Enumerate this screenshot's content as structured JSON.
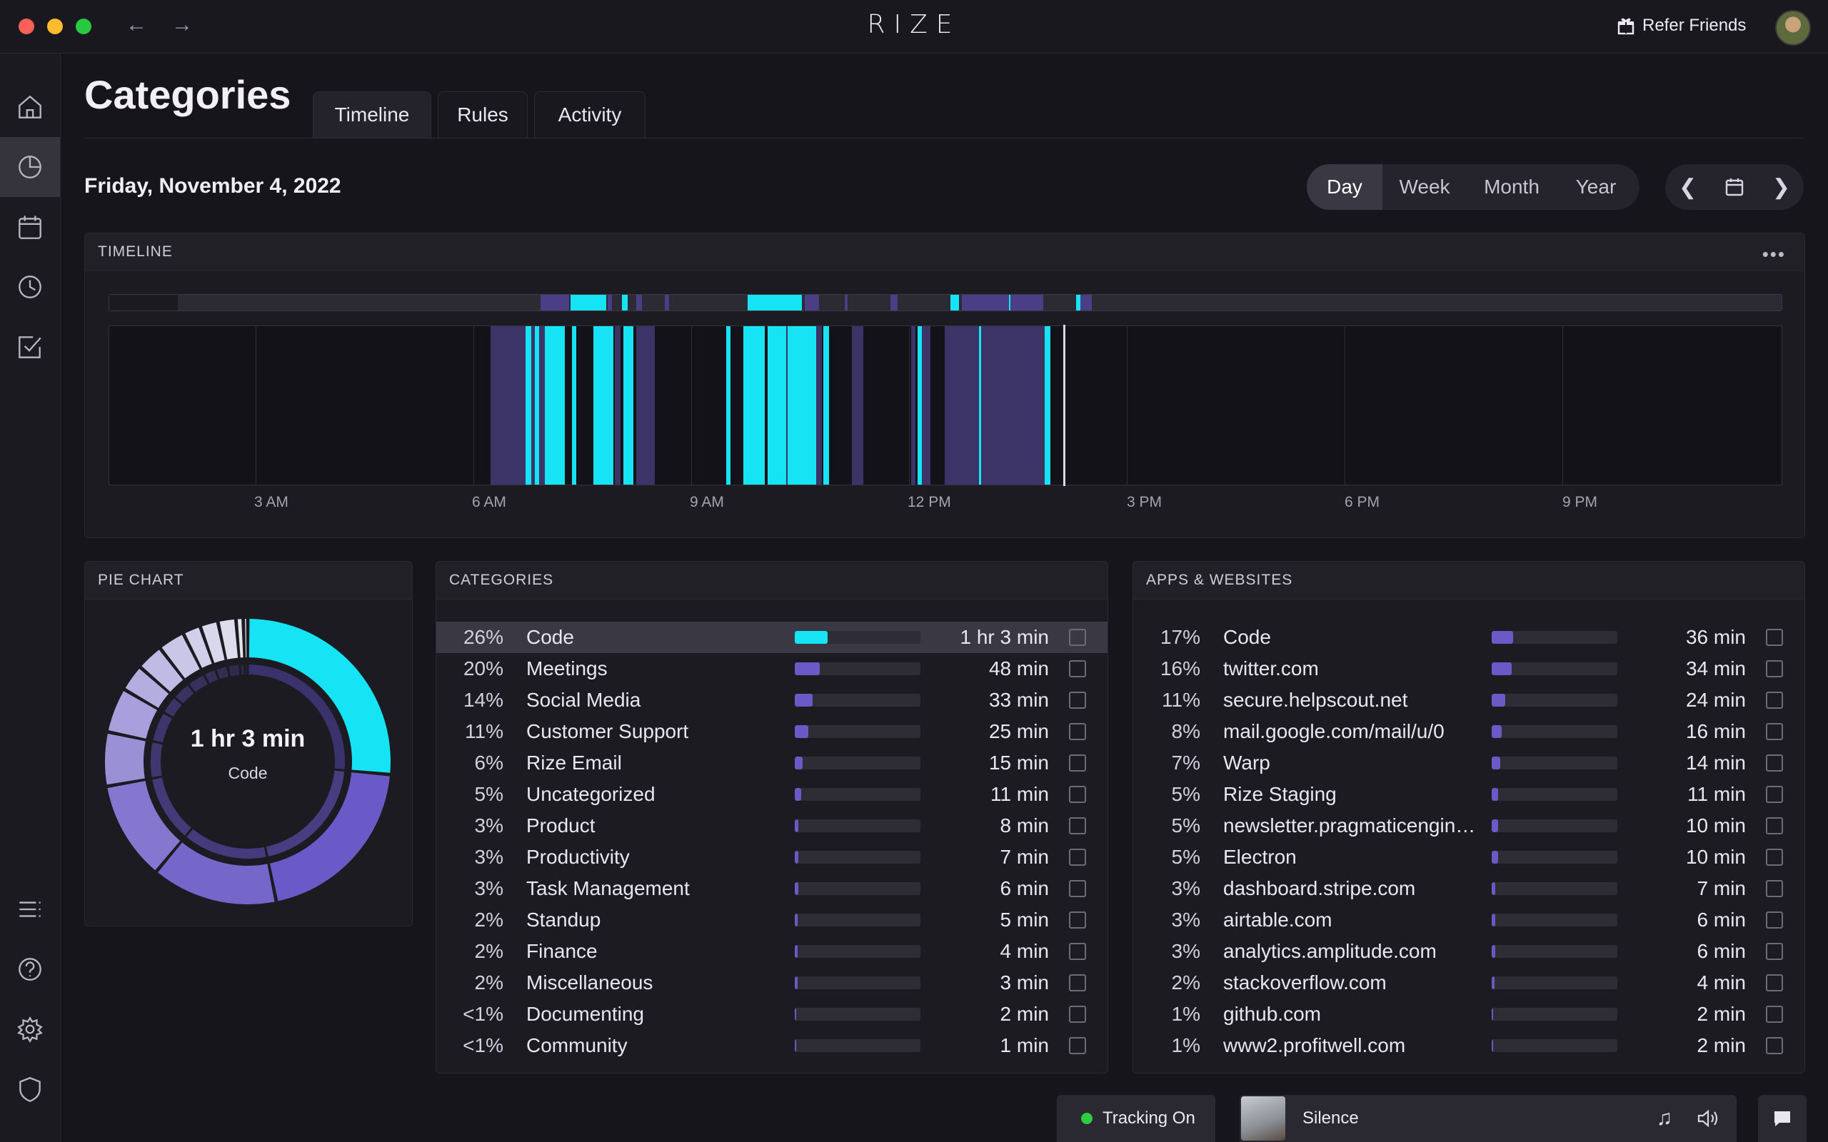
{
  "app": {
    "brand": "RIZE",
    "refer_label": "Refer Friends"
  },
  "page": {
    "title": "Categories",
    "tabs": [
      {
        "label": "Timeline"
      },
      {
        "label": "Rules"
      },
      {
        "label": "Activity"
      }
    ],
    "date": "Friday, November 4, 2022",
    "ranges": [
      {
        "label": "Day"
      },
      {
        "label": "Week"
      },
      {
        "label": "Month"
      },
      {
        "label": "Year"
      }
    ]
  },
  "timeline": {
    "header": "TIMELINE",
    "ticks": [
      "3 AM",
      "6 AM",
      "9 AM",
      "12 PM",
      "3 PM",
      "6 PM",
      "9 PM"
    ],
    "colors": {
      "focus": "#16e3f4",
      "activity": "#3c3466",
      "now": "#d8d8e0"
    }
  },
  "pie": {
    "header": "PIE CHART",
    "center_value": "1 hr 3 min",
    "center_label": "Code"
  },
  "categories": {
    "header": "CATEGORIES",
    "rows": [
      {
        "pct": "26%",
        "name": "Code",
        "dur": "1 hr 3 min",
        "share": 0.26,
        "color": "#16e3f4"
      },
      {
        "pct": "20%",
        "name": "Meetings",
        "dur": "48 min",
        "share": 0.2
      },
      {
        "pct": "14%",
        "name": "Social Media",
        "dur": "33 min",
        "share": 0.14
      },
      {
        "pct": "11%",
        "name": "Customer Support",
        "dur": "25 min",
        "share": 0.11
      },
      {
        "pct": "6%",
        "name": "Rize Email",
        "dur": "15 min",
        "share": 0.06
      },
      {
        "pct": "5%",
        "name": "Uncategorized",
        "dur": "11 min",
        "share": 0.05
      },
      {
        "pct": "3%",
        "name": "Product",
        "dur": "8 min",
        "share": 0.03
      },
      {
        "pct": "3%",
        "name": "Productivity",
        "dur": "7 min",
        "share": 0.03
      },
      {
        "pct": "3%",
        "name": "Task Management",
        "dur": "6 min",
        "share": 0.03
      },
      {
        "pct": "2%",
        "name": "Standup",
        "dur": "5 min",
        "share": 0.02
      },
      {
        "pct": "2%",
        "name": "Finance",
        "dur": "4 min",
        "share": 0.02
      },
      {
        "pct": "2%",
        "name": "Miscellaneous",
        "dur": "3 min",
        "share": 0.02
      },
      {
        "pct": "<1%",
        "name": "Documenting",
        "dur": "2 min",
        "share": 0.008
      },
      {
        "pct": "<1%",
        "name": "Community",
        "dur": "1 min",
        "share": 0.005
      }
    ]
  },
  "apps": {
    "header": "APPS & WEBSITES",
    "rows": [
      {
        "pct": "17%",
        "name": "Code",
        "dur": "36 min",
        "share": 0.17
      },
      {
        "pct": "16%",
        "name": "twitter.com",
        "dur": "34 min",
        "share": 0.16
      },
      {
        "pct": "11%",
        "name": "secure.helpscout.net",
        "dur": "24 min",
        "share": 0.11
      },
      {
        "pct": "8%",
        "name": "mail.google.com/mail/u/0",
        "dur": "16 min",
        "share": 0.08
      },
      {
        "pct": "7%",
        "name": "Warp",
        "dur": "14 min",
        "share": 0.07
      },
      {
        "pct": "5%",
        "name": "Rize Staging",
        "dur": "11 min",
        "share": 0.05
      },
      {
        "pct": "5%",
        "name": "newsletter.pragmaticengin…",
        "dur": "10 min",
        "share": 0.05
      },
      {
        "pct": "5%",
        "name": "Electron",
        "dur": "10 min",
        "share": 0.05
      },
      {
        "pct": "3%",
        "name": "dashboard.stripe.com",
        "dur": "7 min",
        "share": 0.03
      },
      {
        "pct": "3%",
        "name": "airtable.com",
        "dur": "6 min",
        "share": 0.03
      },
      {
        "pct": "3%",
        "name": "analytics.amplitude.com",
        "dur": "6 min",
        "share": 0.03
      },
      {
        "pct": "2%",
        "name": "stackoverflow.com",
        "dur": "4 min",
        "share": 0.02
      },
      {
        "pct": "1%",
        "name": "github.com",
        "dur": "2 min",
        "share": 0.01
      },
      {
        "pct": "1%",
        "name": "www2.profitwell.com",
        "dur": "2 min",
        "share": 0.01
      }
    ]
  },
  "footer": {
    "tracking_label": "Tracking On",
    "music_label": "Silence"
  }
}
